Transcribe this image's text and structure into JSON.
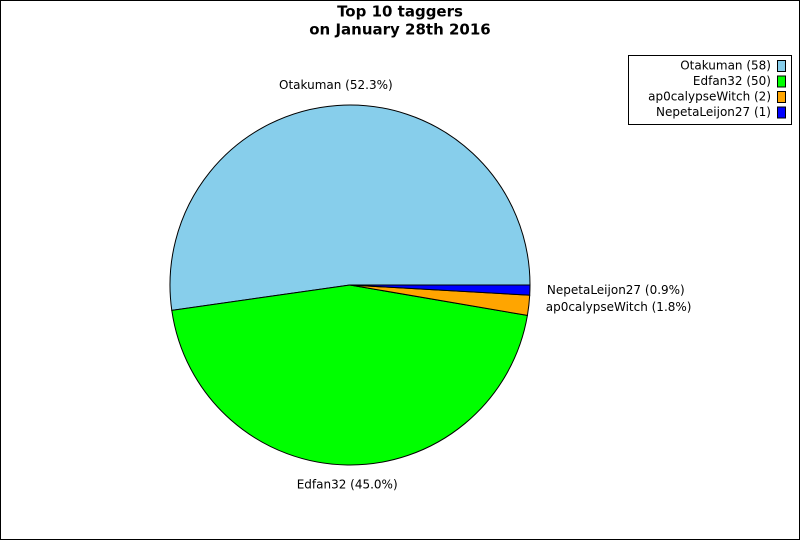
{
  "chart_data": {
    "type": "pie",
    "title_lines": [
      "Top 10 taggers",
      "on January 28th 2016"
    ],
    "categories": [
      "Otakuman (58)",
      "Edfan32 (50)",
      "ap0calypseWitch (2)",
      "NepetaLeijon27 (1)"
    ],
    "values": [
      58,
      50,
      2,
      1
    ],
    "slice_labels": [
      "Otakuman (52.3%)",
      "Edfan32 (45.0%)",
      "ap0calypseWitch (1.8%)",
      "NepetaLeijon27 (0.9%)"
    ],
    "colors": [
      "#87ceeb",
      "#00ff00",
      "#ffa500",
      "#0000ff"
    ],
    "legend": "upper right"
  }
}
